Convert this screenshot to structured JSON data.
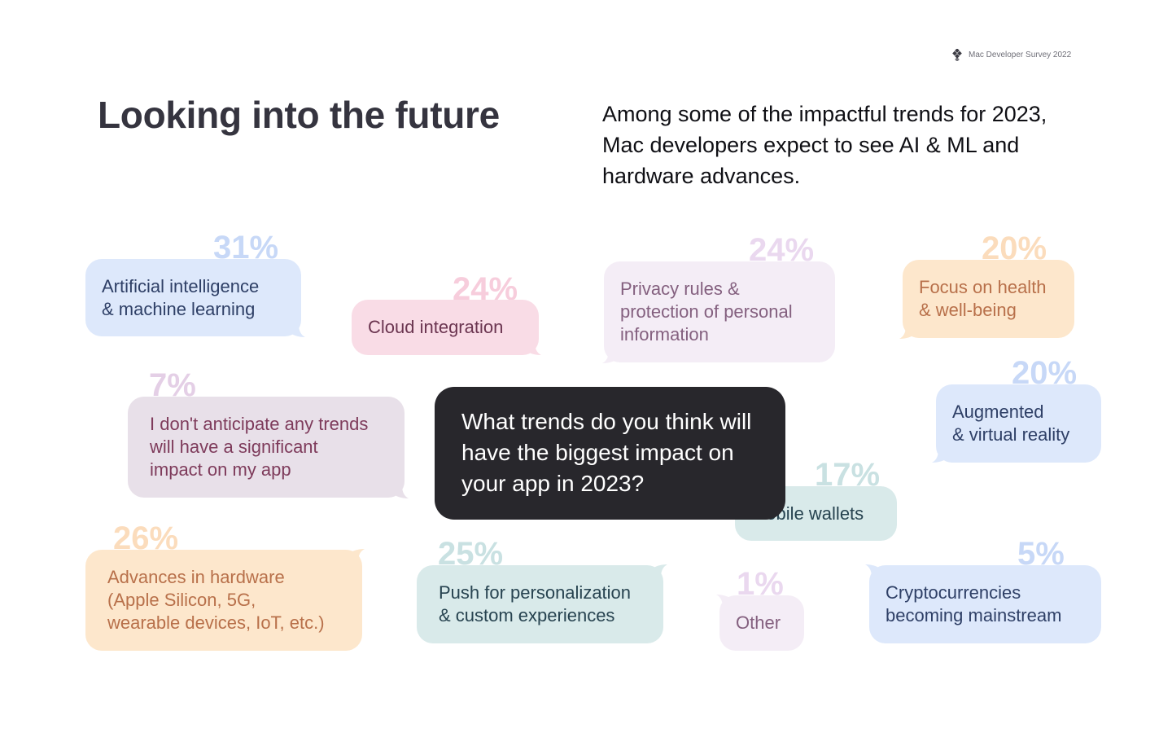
{
  "header": {
    "brand_icon": "survey-logo-icon",
    "brand_label": "Mac Developer Survey 2022",
    "title": "Looking into the future",
    "subtitle": "Among some of the impactful trends for 2023, Mac developers expect to see AI & ML and hardware advances."
  },
  "question": "What trends do you think will have the biggest impact on your app in 2023?",
  "chart_data": {
    "type": "bubble-list",
    "title": "What trends do you think will have the biggest impact on your app in 2023?",
    "unit": "% of respondents",
    "categories": [
      "Artificial intelligence & machine learning",
      "Cloud integration",
      "Privacy rules & protection of personal information",
      "Focus on health & well-being",
      "Augmented & virtual reality",
      "I don't anticipate any trends will have a significant impact on my app",
      "Mobile wallets",
      "Advances in hardware (Apple Silicon, 5G, wearable devices, IoT, etc.)",
      "Push for personalization & custom experiences",
      "Other",
      "Cryptocurrencies becoming mainstream"
    ],
    "values": [
      31,
      24,
      24,
      20,
      20,
      7,
      17,
      26,
      25,
      1,
      5
    ],
    "labels": [
      "31%",
      "24%",
      "24%",
      "20%",
      "20%",
      "7%",
      "17%",
      "26%",
      "25%",
      "1%",
      "5%"
    ],
    "colors": [
      {
        "bg": "#dde8fb",
        "text": "#2e3f66",
        "pct": "#c7d8f7"
      },
      {
        "bg": "#f9dce6",
        "text": "#6b3550",
        "pct": "#f7cddc"
      },
      {
        "bg": "#f4edf6",
        "text": "#84607f",
        "pct": "#ead8ef"
      },
      {
        "bg": "#fde7cc",
        "text": "#b8704a",
        "pct": "#fbdcbc"
      },
      {
        "bg": "#dde8fb",
        "text": "#2e3f66",
        "pct": "#c7d8f7"
      },
      {
        "bg": "#e8e0e9",
        "text": "#7e3b5b",
        "pct": "#e4cfe6"
      },
      {
        "bg": "#d9eaea",
        "text": "#274350",
        "pct": "#c9e1e2"
      },
      {
        "bg": "#fde7cc",
        "text": "#b8704a",
        "pct": "#fbdcbc"
      },
      {
        "bg": "#d9eaea",
        "text": "#274350",
        "pct": "#c9e1e2"
      },
      {
        "bg": "#f4edf6",
        "text": "#84607f",
        "pct": "#ead8ef"
      },
      {
        "bg": "#dde8fb",
        "text": "#2e3f66",
        "pct": "#c7d8f7"
      }
    ]
  }
}
